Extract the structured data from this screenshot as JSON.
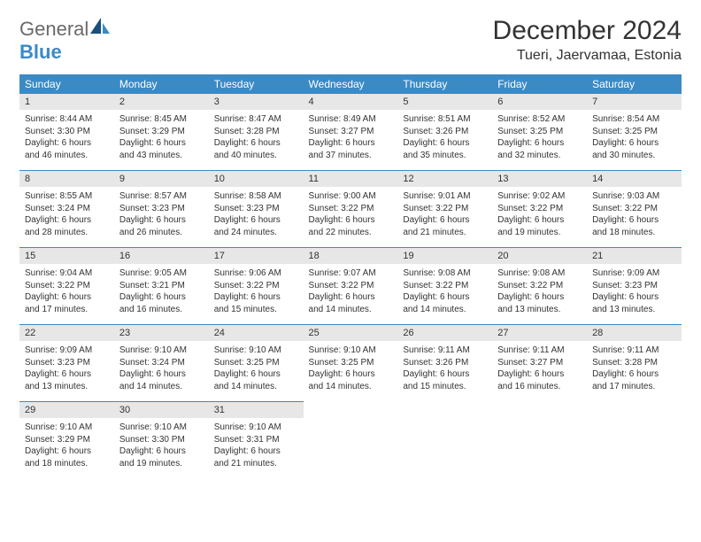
{
  "logo": {
    "line1": "General",
    "line2": "Blue"
  },
  "title": "December 2024",
  "location": "Tueri, Jaervamaa, Estonia",
  "colors": {
    "header_bg": "#3b8ac4",
    "header_text": "#ffffff",
    "daynum_bg": "#e7e7e7",
    "text": "#333333",
    "logo_blue": "#3b8ac4",
    "logo_gray": "#6a6a6a"
  },
  "daysOfWeek": [
    "Sunday",
    "Monday",
    "Tuesday",
    "Wednesday",
    "Thursday",
    "Friday",
    "Saturday"
  ],
  "weeks": [
    {
      "nums": [
        "1",
        "2",
        "3",
        "4",
        "5",
        "6",
        "7"
      ],
      "cells": [
        {
          "sunrise": "Sunrise: 8:44 AM",
          "sunset": "Sunset: 3:30 PM",
          "day1": "Daylight: 6 hours",
          "day2": "and 46 minutes."
        },
        {
          "sunrise": "Sunrise: 8:45 AM",
          "sunset": "Sunset: 3:29 PM",
          "day1": "Daylight: 6 hours",
          "day2": "and 43 minutes."
        },
        {
          "sunrise": "Sunrise: 8:47 AM",
          "sunset": "Sunset: 3:28 PM",
          "day1": "Daylight: 6 hours",
          "day2": "and 40 minutes."
        },
        {
          "sunrise": "Sunrise: 8:49 AM",
          "sunset": "Sunset: 3:27 PM",
          "day1": "Daylight: 6 hours",
          "day2": "and 37 minutes."
        },
        {
          "sunrise": "Sunrise: 8:51 AM",
          "sunset": "Sunset: 3:26 PM",
          "day1": "Daylight: 6 hours",
          "day2": "and 35 minutes."
        },
        {
          "sunrise": "Sunrise: 8:52 AM",
          "sunset": "Sunset: 3:25 PM",
          "day1": "Daylight: 6 hours",
          "day2": "and 32 minutes."
        },
        {
          "sunrise": "Sunrise: 8:54 AM",
          "sunset": "Sunset: 3:25 PM",
          "day1": "Daylight: 6 hours",
          "day2": "and 30 minutes."
        }
      ]
    },
    {
      "nums": [
        "8",
        "9",
        "10",
        "11",
        "12",
        "13",
        "14"
      ],
      "cells": [
        {
          "sunrise": "Sunrise: 8:55 AM",
          "sunset": "Sunset: 3:24 PM",
          "day1": "Daylight: 6 hours",
          "day2": "and 28 minutes."
        },
        {
          "sunrise": "Sunrise: 8:57 AM",
          "sunset": "Sunset: 3:23 PM",
          "day1": "Daylight: 6 hours",
          "day2": "and 26 minutes."
        },
        {
          "sunrise": "Sunrise: 8:58 AM",
          "sunset": "Sunset: 3:23 PM",
          "day1": "Daylight: 6 hours",
          "day2": "and 24 minutes."
        },
        {
          "sunrise": "Sunrise: 9:00 AM",
          "sunset": "Sunset: 3:22 PM",
          "day1": "Daylight: 6 hours",
          "day2": "and 22 minutes."
        },
        {
          "sunrise": "Sunrise: 9:01 AM",
          "sunset": "Sunset: 3:22 PM",
          "day1": "Daylight: 6 hours",
          "day2": "and 21 minutes."
        },
        {
          "sunrise": "Sunrise: 9:02 AM",
          "sunset": "Sunset: 3:22 PM",
          "day1": "Daylight: 6 hours",
          "day2": "and 19 minutes."
        },
        {
          "sunrise": "Sunrise: 9:03 AM",
          "sunset": "Sunset: 3:22 PM",
          "day1": "Daylight: 6 hours",
          "day2": "and 18 minutes."
        }
      ]
    },
    {
      "nums": [
        "15",
        "16",
        "17",
        "18",
        "19",
        "20",
        "21"
      ],
      "cells": [
        {
          "sunrise": "Sunrise: 9:04 AM",
          "sunset": "Sunset: 3:22 PM",
          "day1": "Daylight: 6 hours",
          "day2": "and 17 minutes."
        },
        {
          "sunrise": "Sunrise: 9:05 AM",
          "sunset": "Sunset: 3:21 PM",
          "day1": "Daylight: 6 hours",
          "day2": "and 16 minutes."
        },
        {
          "sunrise": "Sunrise: 9:06 AM",
          "sunset": "Sunset: 3:22 PM",
          "day1": "Daylight: 6 hours",
          "day2": "and 15 minutes."
        },
        {
          "sunrise": "Sunrise: 9:07 AM",
          "sunset": "Sunset: 3:22 PM",
          "day1": "Daylight: 6 hours",
          "day2": "and 14 minutes."
        },
        {
          "sunrise": "Sunrise: 9:08 AM",
          "sunset": "Sunset: 3:22 PM",
          "day1": "Daylight: 6 hours",
          "day2": "and 14 minutes."
        },
        {
          "sunrise": "Sunrise: 9:08 AM",
          "sunset": "Sunset: 3:22 PM",
          "day1": "Daylight: 6 hours",
          "day2": "and 13 minutes."
        },
        {
          "sunrise": "Sunrise: 9:09 AM",
          "sunset": "Sunset: 3:23 PM",
          "day1": "Daylight: 6 hours",
          "day2": "and 13 minutes."
        }
      ]
    },
    {
      "nums": [
        "22",
        "23",
        "24",
        "25",
        "26",
        "27",
        "28"
      ],
      "cells": [
        {
          "sunrise": "Sunrise: 9:09 AM",
          "sunset": "Sunset: 3:23 PM",
          "day1": "Daylight: 6 hours",
          "day2": "and 13 minutes."
        },
        {
          "sunrise": "Sunrise: 9:10 AM",
          "sunset": "Sunset: 3:24 PM",
          "day1": "Daylight: 6 hours",
          "day2": "and 14 minutes."
        },
        {
          "sunrise": "Sunrise: 9:10 AM",
          "sunset": "Sunset: 3:25 PM",
          "day1": "Daylight: 6 hours",
          "day2": "and 14 minutes."
        },
        {
          "sunrise": "Sunrise: 9:10 AM",
          "sunset": "Sunset: 3:25 PM",
          "day1": "Daylight: 6 hours",
          "day2": "and 14 minutes."
        },
        {
          "sunrise": "Sunrise: 9:11 AM",
          "sunset": "Sunset: 3:26 PM",
          "day1": "Daylight: 6 hours",
          "day2": "and 15 minutes."
        },
        {
          "sunrise": "Sunrise: 9:11 AM",
          "sunset": "Sunset: 3:27 PM",
          "day1": "Daylight: 6 hours",
          "day2": "and 16 minutes."
        },
        {
          "sunrise": "Sunrise: 9:11 AM",
          "sunset": "Sunset: 3:28 PM",
          "day1": "Daylight: 6 hours",
          "day2": "and 17 minutes."
        }
      ]
    },
    {
      "nums": [
        "29",
        "30",
        "31",
        "",
        "",
        "",
        ""
      ],
      "cells": [
        {
          "sunrise": "Sunrise: 9:10 AM",
          "sunset": "Sunset: 3:29 PM",
          "day1": "Daylight: 6 hours",
          "day2": "and 18 minutes."
        },
        {
          "sunrise": "Sunrise: 9:10 AM",
          "sunset": "Sunset: 3:30 PM",
          "day1": "Daylight: 6 hours",
          "day2": "and 19 minutes."
        },
        {
          "sunrise": "Sunrise: 9:10 AM",
          "sunset": "Sunset: 3:31 PM",
          "day1": "Daylight: 6 hours",
          "day2": "and 21 minutes."
        },
        null,
        null,
        null,
        null
      ]
    }
  ]
}
